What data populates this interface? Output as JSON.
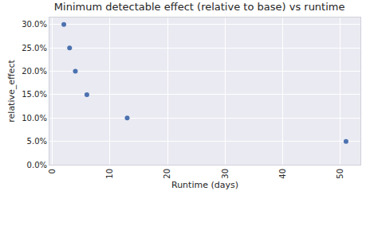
{
  "chart_data": {
    "type": "scatter",
    "title": "Minimum detectable effect (relative to base) vs runtime",
    "x_label": "Runtime (days)",
    "y_label": "relative_effect",
    "x": [
      2,
      3,
      4,
      6,
      13,
      51
    ],
    "values": [
      30,
      25,
      20,
      15,
      10,
      5
    ],
    "color": "#4c72b0",
    "marker": "circle",
    "xlim": [
      -0.5,
      53.5
    ],
    "xticks": [
      0,
      10,
      20,
      30,
      40,
      50
    ],
    "ylim": [
      0,
      31.5
    ],
    "yticks": [
      {
        "value": 0,
        "label": "0.0%"
      },
      {
        "value": 5,
        "label": "5.0%"
      },
      {
        "value": 10,
        "label": "10.0%"
      },
      {
        "value": 15,
        "label": "15.0%"
      },
      {
        "value": 20,
        "label": "20.0%"
      },
      {
        "value": 25,
        "label": "25.0%"
      },
      {
        "value": 30,
        "label": "30.0%"
      }
    ],
    "grid": true
  }
}
